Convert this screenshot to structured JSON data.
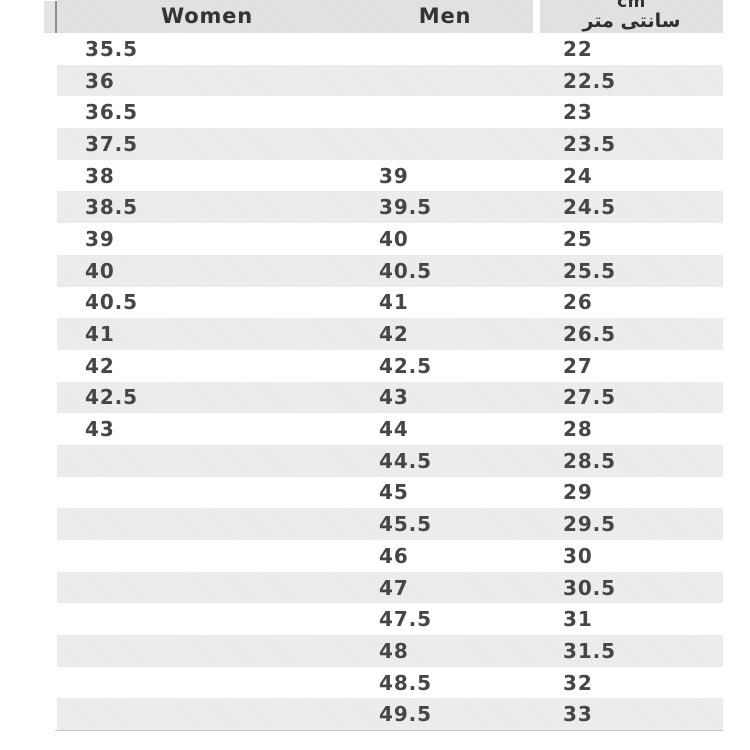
{
  "chart_data": {
    "type": "table",
    "columns": [
      "Women",
      "Men",
      "cm سانتی متر"
    ],
    "rows": [
      [
        "35.5",
        "",
        "22"
      ],
      [
        "36",
        "",
        "22.5"
      ],
      [
        "36.5",
        "",
        "23"
      ],
      [
        "37.5",
        "",
        "23.5"
      ],
      [
        "38",
        "39",
        "24"
      ],
      [
        "38.5",
        "39.5",
        "24.5"
      ],
      [
        "39",
        "40",
        "25"
      ],
      [
        "40",
        "40.5",
        "25.5"
      ],
      [
        "40.5",
        "41",
        "26"
      ],
      [
        "41",
        "42",
        "26.5"
      ],
      [
        "42",
        "42.5",
        "27"
      ],
      [
        "42.5",
        "43",
        "27.5"
      ],
      [
        "43",
        "44",
        "28"
      ],
      [
        "",
        "44.5",
        "28.5"
      ],
      [
        "",
        "45",
        "29"
      ],
      [
        "",
        "45.5",
        "29.5"
      ],
      [
        "",
        "46",
        "30"
      ],
      [
        "",
        "47",
        "30.5"
      ],
      [
        "",
        "47.5",
        "31"
      ],
      [
        "",
        "48",
        "31.5"
      ],
      [
        "",
        "48.5",
        "32"
      ],
      [
        "",
        "49.5",
        "33"
      ]
    ]
  },
  "header": {
    "women_label": "Women",
    "men_label": "Men",
    "cm_label_top": "cm",
    "cm_label_bottom": "سانتی متر"
  },
  "colors": {
    "header_bg": "#e2e2e2",
    "stripe_bg": "#ededed",
    "row_bg": "#ffffff",
    "header_text": "#333333",
    "body_text": "#464646",
    "left_accent": "#8d8d8d",
    "bottom_border": "#c9c9c9"
  }
}
